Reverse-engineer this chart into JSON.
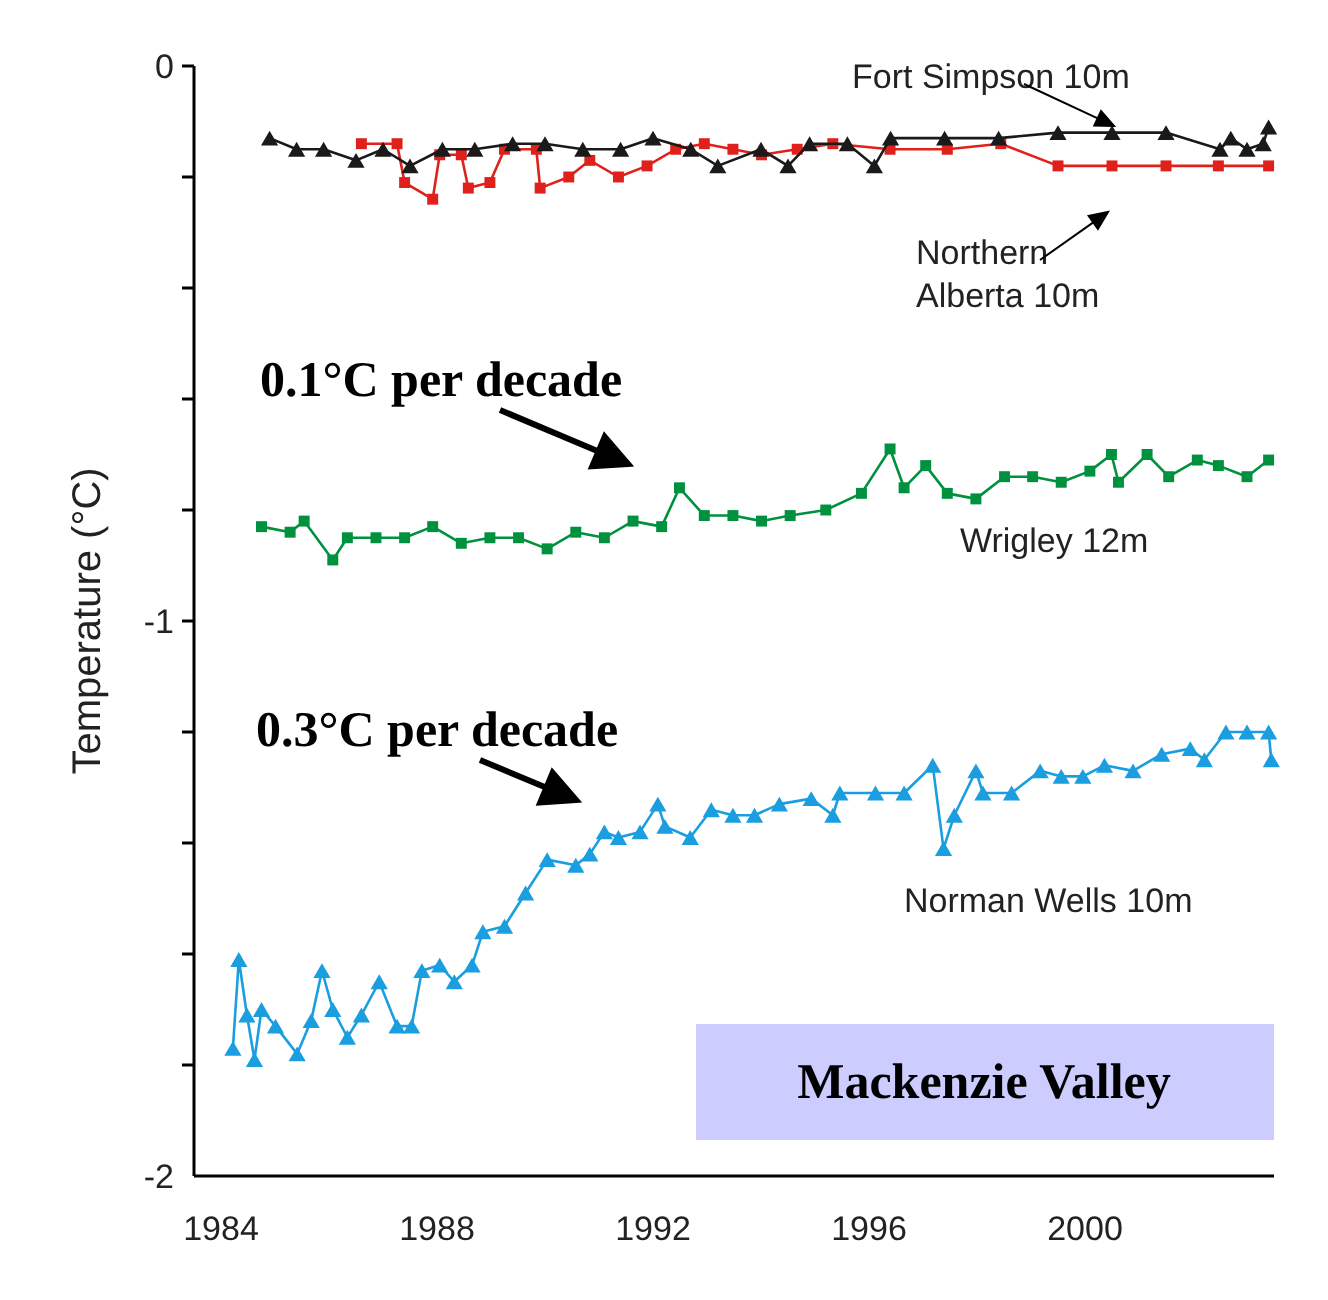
{
  "chart_data": {
    "type": "line",
    "ylabel": "Temperature (°C)",
    "xlim": [
      1983.5,
      2003.5
    ],
    "ylim": [
      -2,
      0
    ],
    "yticks": [
      -2,
      {
        "value": -1.8,
        "label": null
      },
      {
        "value": -1.6,
        "label": null
      },
      {
        "value": -1.4,
        "label": null
      },
      {
        "value": -1.2,
        "label": null
      },
      -1,
      {
        "value": -0.8,
        "label": null
      },
      {
        "value": -0.6,
        "label": null
      },
      {
        "value": -0.4,
        "label": null
      },
      {
        "value": -0.2,
        "label": null
      },
      0
    ],
    "xticks": [
      1984,
      1988,
      1992,
      1996,
      2000
    ],
    "grid": false,
    "legend": false,
    "line_style": "solid",
    "series": [
      {
        "name": "Fort Simpson 10m",
        "color": "#1a1a1a",
        "marker": "triangle",
        "x": [
          1984.9,
          1985.4,
          1985.9,
          1986.5,
          1987.0,
          1987.5,
          1988.1,
          1988.7,
          1989.4,
          1990.0,
          1990.7,
          1991.4,
          1992.0,
          1992.7,
          1993.2,
          1994.0,
          1994.5,
          1994.9,
          1995.6,
          1996.1,
          1996.4,
          1997.4,
          1998.4,
          1999.5,
          2000.5,
          2001.5,
          2002.5,
          2002.7,
          2003.0,
          2003.3,
          2003.4
        ],
        "values": [
          -0.13,
          -0.15,
          -0.15,
          -0.17,
          -0.15,
          -0.18,
          -0.15,
          -0.15,
          -0.14,
          -0.14,
          -0.15,
          -0.15,
          -0.13,
          -0.15,
          -0.18,
          -0.15,
          -0.18,
          -0.14,
          -0.14,
          -0.18,
          -0.13,
          -0.13,
          -0.13,
          -0.12,
          -0.12,
          -0.12,
          -0.15,
          -0.13,
          -0.15,
          -0.14,
          -0.11
        ]
      },
      {
        "name": "Northern Alberta 10m",
        "color": "#e0201b",
        "marker": "square",
        "x": [
          1986.6,
          1987.26,
          1987.4,
          1987.92,
          1988.05,
          1988.45,
          1988.58,
          1988.98,
          1989.25,
          1989.84,
          1989.91,
          1990.44,
          1990.83,
          1991.36,
          1991.89,
          1992.42,
          1992.95,
          1993.48,
          1994.01,
          1994.67,
          1995.33,
          1996.39,
          1997.45,
          1998.44,
          1999.5,
          2000.5,
          2001.5,
          2002.47,
          2003.4
        ],
        "values": [
          -0.14,
          -0.14,
          -0.21,
          -0.24,
          -0.16,
          -0.16,
          -0.22,
          -0.21,
          -0.15,
          -0.15,
          -0.22,
          -0.2,
          -0.17,
          -0.2,
          -0.18,
          -0.15,
          -0.14,
          -0.15,
          -0.16,
          -0.15,
          -0.14,
          -0.15,
          -0.15,
          -0.14,
          -0.18,
          -0.18,
          -0.18,
          -0.18,
          -0.18
        ]
      },
      {
        "name": "Wrigley 12m",
        "color": "#00913f",
        "marker": "square",
        "x": [
          1984.75,
          1985.28,
          1985.54,
          1986.07,
          1986.34,
          1986.87,
          1987.4,
          1987.92,
          1988.45,
          1988.98,
          1989.51,
          1990.04,
          1990.57,
          1991.1,
          1991.63,
          1992.16,
          1992.49,
          1992.95,
          1993.48,
          1994.01,
          1994.54,
          1995.2,
          1995.86,
          1996.39,
          1996.65,
          1997.05,
          1997.45,
          1997.98,
          1998.51,
          1999.03,
          1999.56,
          2000.09,
          2000.49,
          2000.62,
          2001.15,
          2001.55,
          2002.08,
          2002.47,
          2003.0,
          2003.4
        ],
        "values": [
          -0.83,
          -0.84,
          -0.82,
          -0.89,
          -0.85,
          -0.85,
          -0.85,
          -0.83,
          -0.86,
          -0.85,
          -0.85,
          -0.87,
          -0.84,
          -0.85,
          -0.82,
          -0.83,
          -0.76,
          -0.81,
          -0.81,
          -0.82,
          -0.81,
          -0.8,
          -0.77,
          -0.69,
          -0.76,
          -0.72,
          -0.77,
          -0.78,
          -0.74,
          -0.74,
          -0.75,
          -0.73,
          -0.7,
          -0.75,
          -0.7,
          -0.74,
          -0.71,
          -0.72,
          -0.74,
          -0.71
        ]
      },
      {
        "name": "Norman Wells 10m",
        "color": "#1a9ee0",
        "marker": "triangle",
        "x": [
          1984.22,
          1984.33,
          1984.48,
          1984.62,
          1984.75,
          1985.01,
          1985.41,
          1985.67,
          1985.87,
          1986.07,
          1986.34,
          1986.6,
          1986.93,
          1987.26,
          1987.53,
          1987.72,
          1988.05,
          1988.32,
          1988.65,
          1988.85,
          1989.25,
          1989.64,
          1990.04,
          1990.57,
          1990.83,
          1991.1,
          1991.36,
          1991.76,
          1992.09,
          1992.22,
          1992.69,
          1993.08,
          1993.48,
          1993.88,
          1994.34,
          1994.93,
          1995.33,
          1995.46,
          1996.12,
          1996.65,
          1997.18,
          1997.38,
          1997.58,
          1997.98,
          1998.11,
          1998.64,
          1999.17,
          1999.56,
          1999.96,
          2000.36,
          2000.89,
          2001.42,
          2001.95,
          2002.21,
          2002.61,
          2003.0,
          2003.4,
          2003.45
        ],
        "values": [
          -1.77,
          -1.61,
          -1.71,
          -1.79,
          -1.7,
          -1.73,
          -1.78,
          -1.72,
          -1.63,
          -1.7,
          -1.75,
          -1.71,
          -1.65,
          -1.73,
          -1.73,
          -1.63,
          -1.62,
          -1.65,
          -1.62,
          -1.56,
          -1.55,
          -1.49,
          -1.43,
          -1.44,
          -1.42,
          -1.38,
          -1.39,
          -1.38,
          -1.33,
          -1.37,
          -1.39,
          -1.34,
          -1.35,
          -1.35,
          -1.33,
          -1.32,
          -1.35,
          -1.31,
          -1.31,
          -1.31,
          -1.26,
          -1.41,
          -1.35,
          -1.27,
          -1.31,
          -1.31,
          -1.27,
          -1.28,
          -1.28,
          -1.26,
          -1.27,
          -1.24,
          -1.23,
          -1.25,
          -1.2,
          -1.2,
          -1.2,
          -1.25
        ]
      }
    ],
    "annotations": [
      "0.1°C per decade",
      "0.3°C per decade",
      "Mackenzie Valley"
    ]
  }
}
